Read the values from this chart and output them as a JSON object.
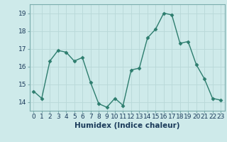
{
  "x": [
    0,
    1,
    2,
    3,
    4,
    5,
    6,
    7,
    8,
    9,
    10,
    11,
    12,
    13,
    14,
    15,
    16,
    17,
    18,
    19,
    20,
    21,
    22,
    23
  ],
  "y": [
    14.6,
    14.2,
    16.3,
    16.9,
    16.8,
    16.3,
    16.5,
    15.1,
    13.9,
    13.7,
    14.2,
    13.8,
    15.8,
    15.9,
    17.6,
    18.1,
    19.0,
    18.9,
    17.3,
    17.4,
    16.1,
    15.3,
    14.2,
    14.1
  ],
  "line_color": "#2d7d6e",
  "marker": "D",
  "marker_size": 2.5,
  "line_width": 1.0,
  "bg_color": "#ceeaea",
  "grid_color": "#b8d8d8",
  "xlabel": "Humidex (Indice chaleur)",
  "xlabel_fontsize": 7.5,
  "yticks": [
    14,
    15,
    16,
    17,
    18,
    19
  ],
  "ylim": [
    13.5,
    19.5
  ],
  "xlim": [
    -0.5,
    23.5
  ],
  "tick_fontsize": 6.5,
  "spine_color": "#7aacac"
}
